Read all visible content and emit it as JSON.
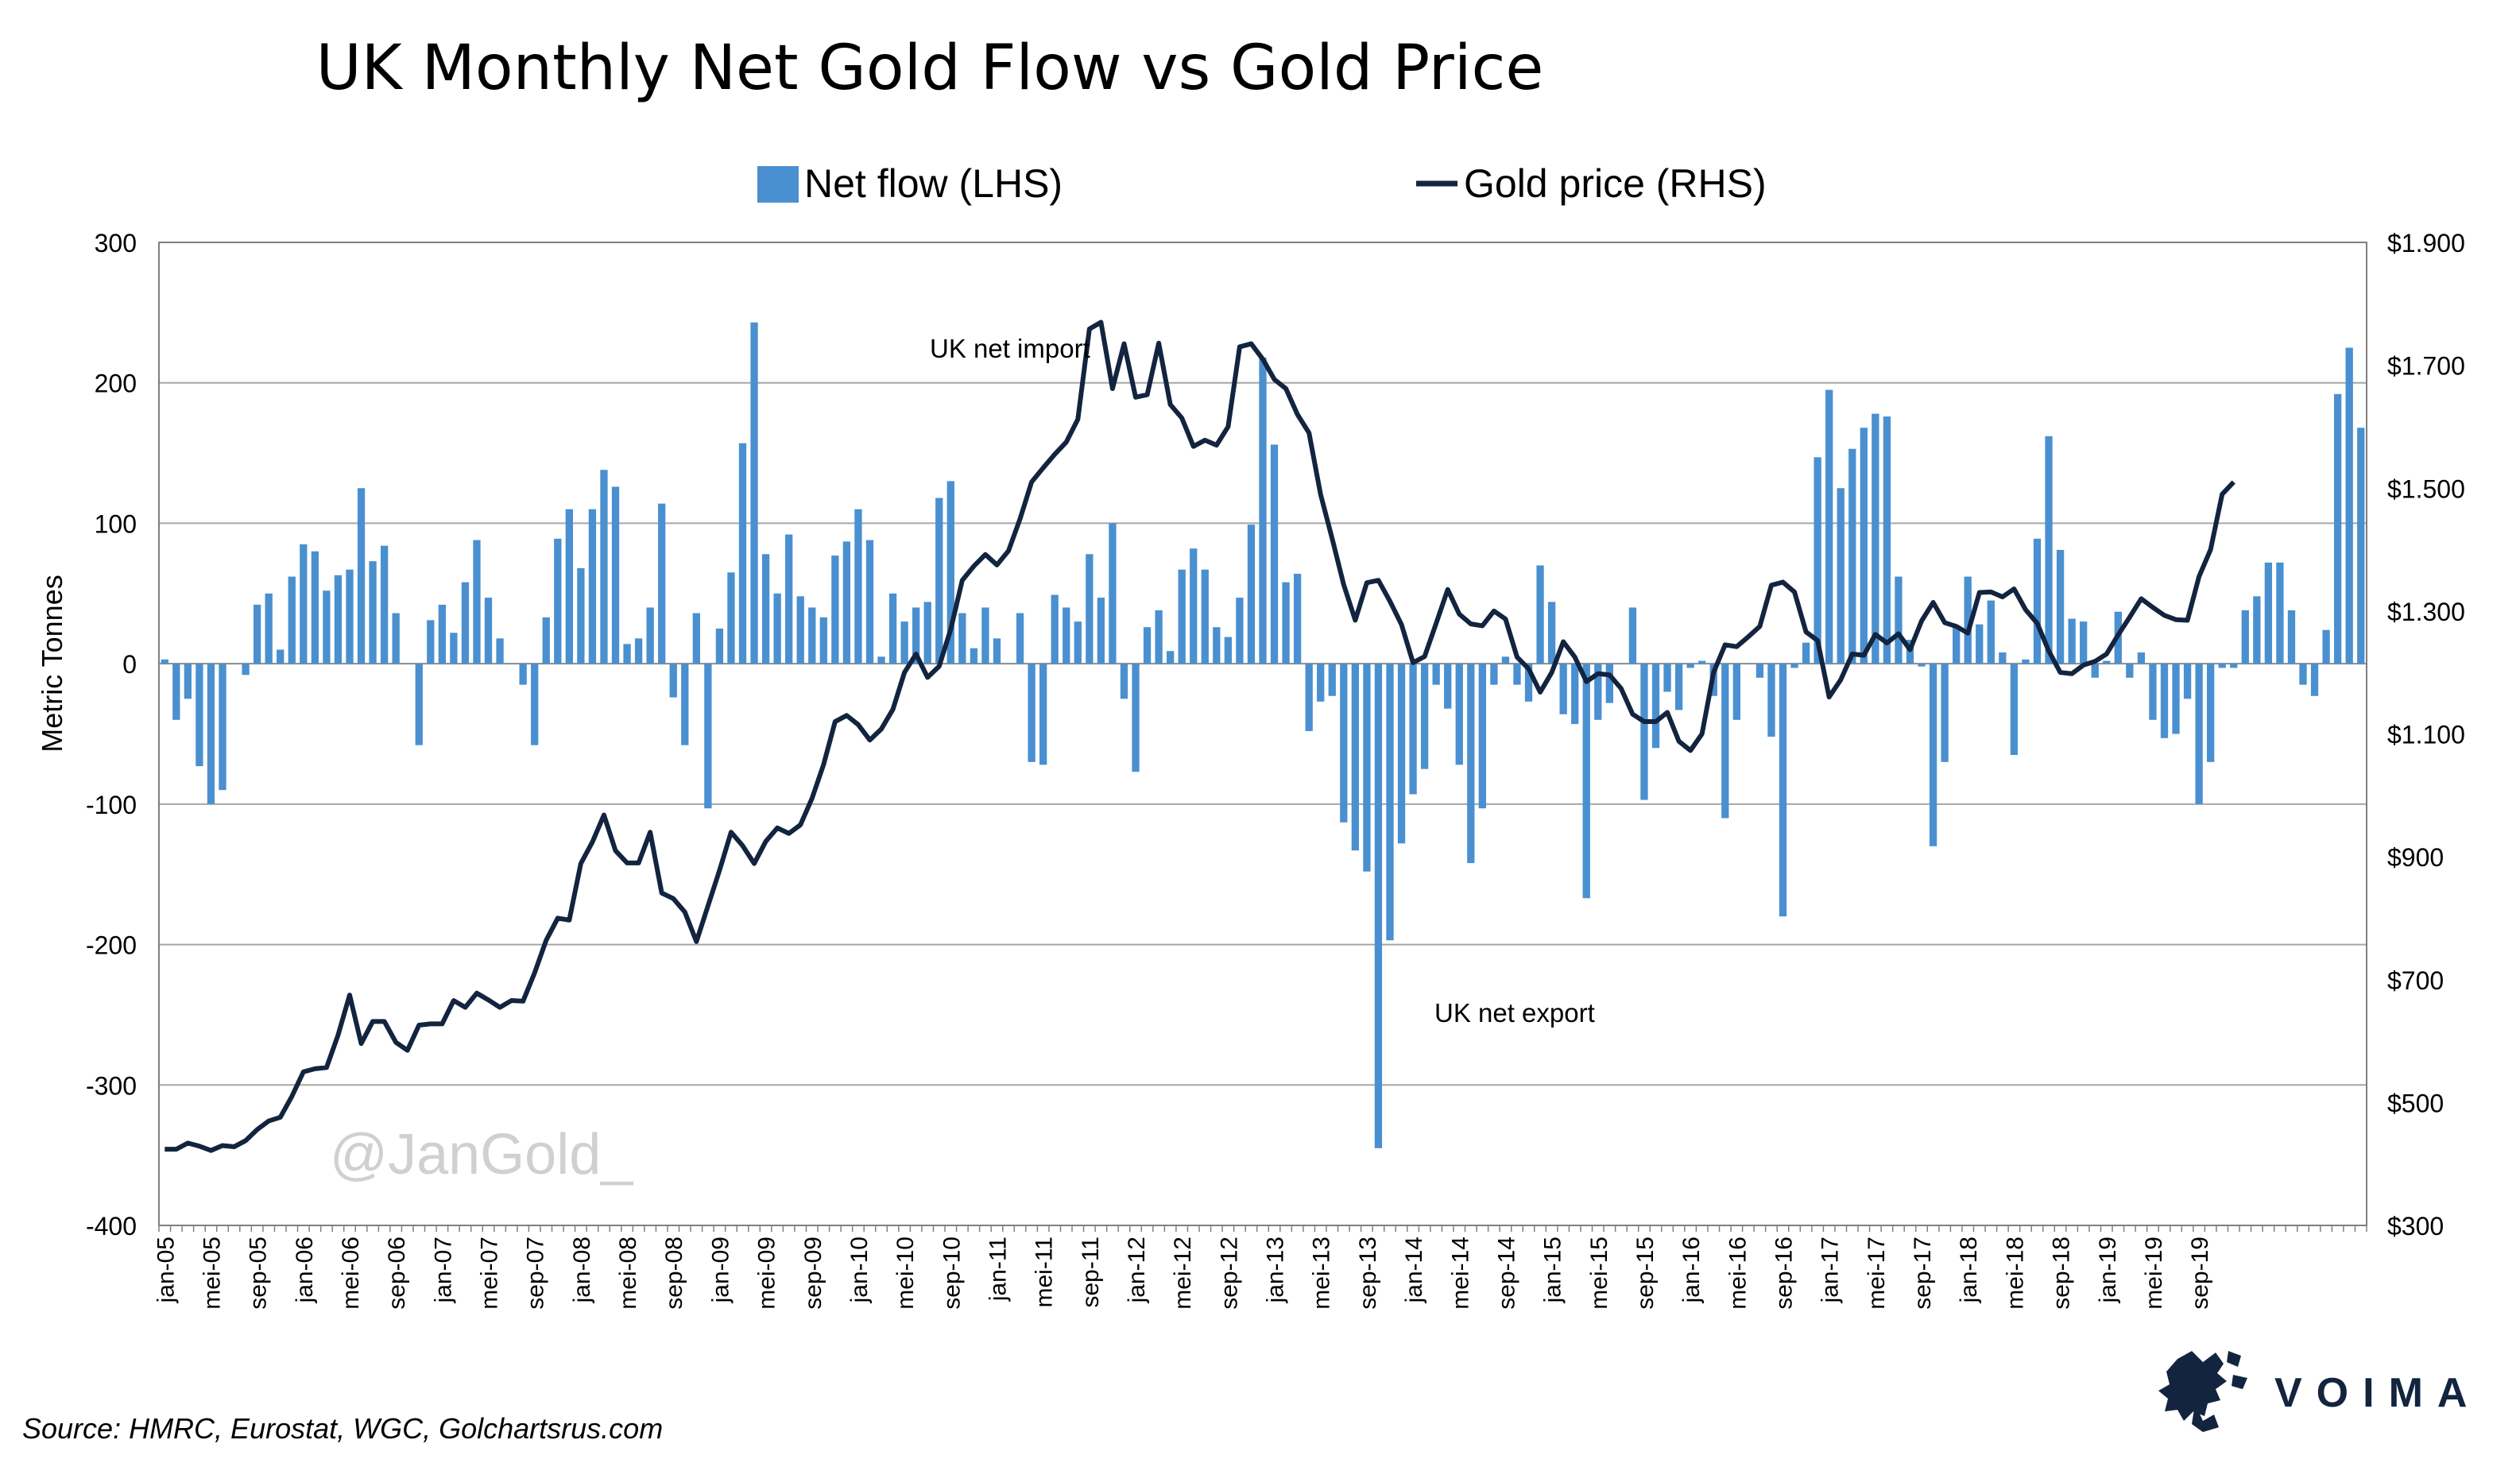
{
  "chart_data": {
    "type": "bar+line",
    "title": "UK Monthly Net Gold Flow vs Gold Price",
    "ylabel_left": "Metric Tonnes",
    "ylim_left": [
      -400,
      300
    ],
    "ylim_right": [
      300,
      1900
    ],
    "left_ticks": [
      "300",
      "200",
      "100",
      "0",
      "-100",
      "-200",
      "-300",
      "-400"
    ],
    "right_ticks": [
      "$1.900",
      "$1.700",
      "$1.500",
      "$1.300",
      "$1.100",
      "$900",
      "$700",
      "$500",
      "$300"
    ],
    "x_tick_labels": [
      "jan-05",
      "mei-05",
      "sep-05",
      "jan-06",
      "mei-06",
      "sep-06",
      "jan-07",
      "mei-07",
      "sep-07",
      "jan-08",
      "mei-08",
      "sep-08",
      "jan-09",
      "mei-09",
      "sep-09",
      "jan-10",
      "mei-10",
      "sep-10",
      "jan-11",
      "mei-11",
      "sep-11",
      "jan-12",
      "mei-12",
      "sep-12",
      "jan-13",
      "mei-13",
      "sep-13",
      "jan-14",
      "mei-14",
      "sep-14",
      "jan-15",
      "mei-15",
      "sep-15",
      "jan-16",
      "mei-16",
      "sep-16",
      "jan-17",
      "mei-17",
      "sep-17",
      "jan-18",
      "mei-18",
      "sep-18",
      "jan-19",
      "mei-19",
      "sep-19"
    ],
    "grid": true,
    "legend_position": "top",
    "series": [
      {
        "name": "Net flow (LHS)",
        "type": "bar",
        "axis": "left",
        "color": "#4a90d0",
        "values": [
          3,
          -40,
          -25,
          -73,
          -100,
          -90,
          0,
          -8,
          42,
          50,
          10,
          62,
          85,
          80,
          52,
          63,
          67,
          125,
          73,
          84,
          36,
          0,
          -58,
          31,
          42,
          22,
          58,
          88,
          47,
          18,
          0,
          -15,
          -58,
          33,
          89,
          110,
          68,
          110,
          138,
          126,
          14,
          18,
          40,
          114,
          -24,
          -58,
          36,
          -103,
          25,
          65,
          157,
          243,
          78,
          50,
          92,
          48,
          40,
          33,
          77,
          87,
          110,
          88,
          5,
          50,
          30,
          40,
          44,
          118,
          130,
          36,
          11,
          40,
          18,
          0,
          36,
          -70,
          -72,
          49,
          40,
          30,
          78,
          47,
          100,
          -25,
          -77,
          26,
          38,
          9,
          67,
          82,
          67,
          26,
          19,
          47,
          99,
          218,
          156,
          58,
          64,
          -48,
          -27,
          -23,
          -113,
          -133,
          -148,
          -345,
          -197,
          -128,
          -93,
          -75,
          -15,
          -32,
          -72,
          -142,
          -103,
          -15,
          5,
          -15,
          -27,
          70,
          44,
          -36,
          -43,
          -167,
          -40,
          -28,
          0,
          40,
          -97,
          -60,
          -20,
          -33,
          -3,
          2,
          -23,
          -110,
          -40,
          0,
          -10,
          -52,
          -180,
          -3,
          15,
          147,
          195,
          125,
          153,
          168,
          178,
          176,
          62,
          17,
          -2,
          -130,
          -70,
          27,
          62,
          28,
          45,
          8,
          -65,
          3,
          89,
          162,
          81,
          32,
          30,
          -10,
          2,
          37,
          -10,
          8,
          -40,
          -53,
          -50,
          -25,
          -100,
          -70,
          -3,
          -3,
          38,
          48,
          72,
          72,
          38,
          -15,
          -23,
          24,
          192,
          225,
          168
        ]
      },
      {
        "name": "Gold price (RHS)",
        "type": "line",
        "axis": "right",
        "color": "#12243f",
        "values": [
          424,
          424,
          434,
          429,
          422,
          430,
          428,
          438,
          456,
          470,
          476,
          510,
          550,
          555,
          557,
          610,
          675,
          596,
          632,
          632,
          598,
          585,
          626,
          628,
          628,
          666,
          655,
          678,
          667,
          655,
          666,
          665,
          711,
          764,
          800,
          797,
          889,
          924,
          968,
          910,
          890,
          890,
          940,
          841,
          832,
          810,
          762,
          820,
          878,
          940,
          918,
          889,
          925,
          947,
          938,
          952,
          995,
          1050,
          1120,
          1130,
          1115,
          1090,
          1108,
          1140,
          1200,
          1230,
          1192,
          1210,
          1270,
          1350,
          1373,
          1392,
          1375,
          1398,
          1450,
          1510,
          1533,
          1555,
          1575,
          1612,
          1759,
          1770,
          1662,
          1735,
          1648,
          1652,
          1736,
          1636,
          1614,
          1568,
          1578,
          1570,
          1600,
          1730,
          1735,
          1710,
          1677,
          1662,
          1620,
          1590,
          1490,
          1418,
          1343,
          1285,
          1346,
          1350,
          1316,
          1278,
          1216,
          1226,
          1280,
          1335,
          1295,
          1279,
          1276,
          1300,
          1287,
          1225,
          1206,
          1168,
          1200,
          1250,
          1225,
          1185,
          1198,
          1196,
          1174,
          1132,
          1120,
          1120,
          1135,
          1088,
          1073,
          1100,
          1200,
          1245,
          1242,
          1258,
          1275,
          1342,
          1347,
          1331,
          1266,
          1252,
          1160,
          1188,
          1230,
          1228,
          1262,
          1248,
          1263,
          1237,
          1284,
          1314,
          1281,
          1275,
          1264,
          1330,
          1331,
          1323,
          1336,
          1302,
          1280,
          1235,
          1200,
          1198,
          1212,
          1218,
          1230,
          1261,
          1290,
          1320,
          1306,
          1293,
          1286,
          1285,
          1356,
          1400,
          1490,
          1510
        ]
      }
    ],
    "annotations": [
      "UK net import",
      "UK net export"
    ]
  },
  "watermark": "@JanGold_",
  "source": "Source: HMRC, Eurostat, WGC, Golchartsrus.com",
  "brand": "VOIMA",
  "colors": {
    "bar": "#4a90d0",
    "line": "#12243f",
    "grid": "#a6a6a6",
    "frame": "#7f7f7f"
  }
}
